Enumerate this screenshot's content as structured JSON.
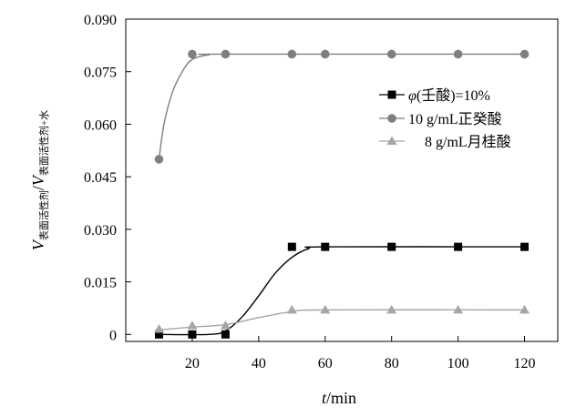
{
  "chart_data": {
    "type": "scatter",
    "xlabel": "t/min",
    "xlabel_italic": "t",
    "xlabel_rest": "/min",
    "ylabel_V1": "V",
    "ylabel_sub1": "表面活性剂",
    "ylabel_slash": "/",
    "ylabel_V2": "V",
    "ylabel_sub2": "表面活性剂+水",
    "xlim": [
      0,
      130
    ],
    "ylim": [
      -0.002,
      0.09
    ],
    "xticks": [
      20,
      40,
      60,
      80,
      100,
      120
    ],
    "xtick_labels": [
      "20",
      "40",
      "60",
      "80",
      "100",
      "120"
    ],
    "yticks": [
      0,
      0.015,
      0.03,
      0.045,
      0.06,
      0.075,
      0.09
    ],
    "ytick_labels": [
      "0",
      "0.015",
      "0.030",
      "0.045",
      "0.060",
      "0.075",
      "0.090"
    ],
    "grid": false,
    "legend_position": "right",
    "series": [
      {
        "name": "φ(壬酸)=10%",
        "name_phi": "φ",
        "name_rest": "(壬酸)=10%",
        "marker": "square",
        "color": "#000000",
        "x": [
          10,
          20,
          30,
          50,
          60,
          80,
          100,
          120
        ],
        "y": [
          0,
          0,
          0,
          0.025,
          0.025,
          0.025,
          0.025,
          0.025
        ],
        "curve": [
          [
            10,
            0
          ],
          [
            25,
            0
          ],
          [
            30,
            0.001
          ],
          [
            35,
            0.005
          ],
          [
            40,
            0.011
          ],
          [
            45,
            0.0175
          ],
          [
            50,
            0.022
          ],
          [
            55,
            0.0245
          ],
          [
            60,
            0.025
          ],
          [
            120,
            0.025
          ]
        ]
      },
      {
        "name": "10 g/mL正癸酸",
        "marker": "circle",
        "color": "#7f7f7f",
        "x": [
          10,
          20,
          30,
          50,
          60,
          80,
          100,
          120
        ],
        "y": [
          0.05,
          0.08,
          0.08,
          0.08,
          0.08,
          0.08,
          0.08,
          0.08
        ],
        "curve": [
          [
            10,
            0.05
          ],
          [
            11.5,
            0.06
          ],
          [
            14,
            0.069
          ],
          [
            17,
            0.075
          ],
          [
            20,
            0.0785
          ],
          [
            25,
            0.0798
          ],
          [
            30,
            0.08
          ],
          [
            120,
            0.08
          ]
        ]
      },
      {
        "name": "8 g/mL月桂酸",
        "marker": "triangle",
        "color": "#a6a6a6",
        "x": [
          10,
          20,
          30,
          50,
          60,
          80,
          100,
          120
        ],
        "y": [
          0.0015,
          0.0025,
          0.0025,
          0.007,
          0.007,
          0.007,
          0.007,
          0.007
        ],
        "curve": [
          [
            10,
            0.0013
          ],
          [
            20,
            0.0021
          ],
          [
            30,
            0.0028
          ],
          [
            40,
            0.0048
          ],
          [
            50,
            0.0065
          ],
          [
            60,
            0.007
          ],
          [
            120,
            0.007
          ]
        ]
      }
    ]
  }
}
